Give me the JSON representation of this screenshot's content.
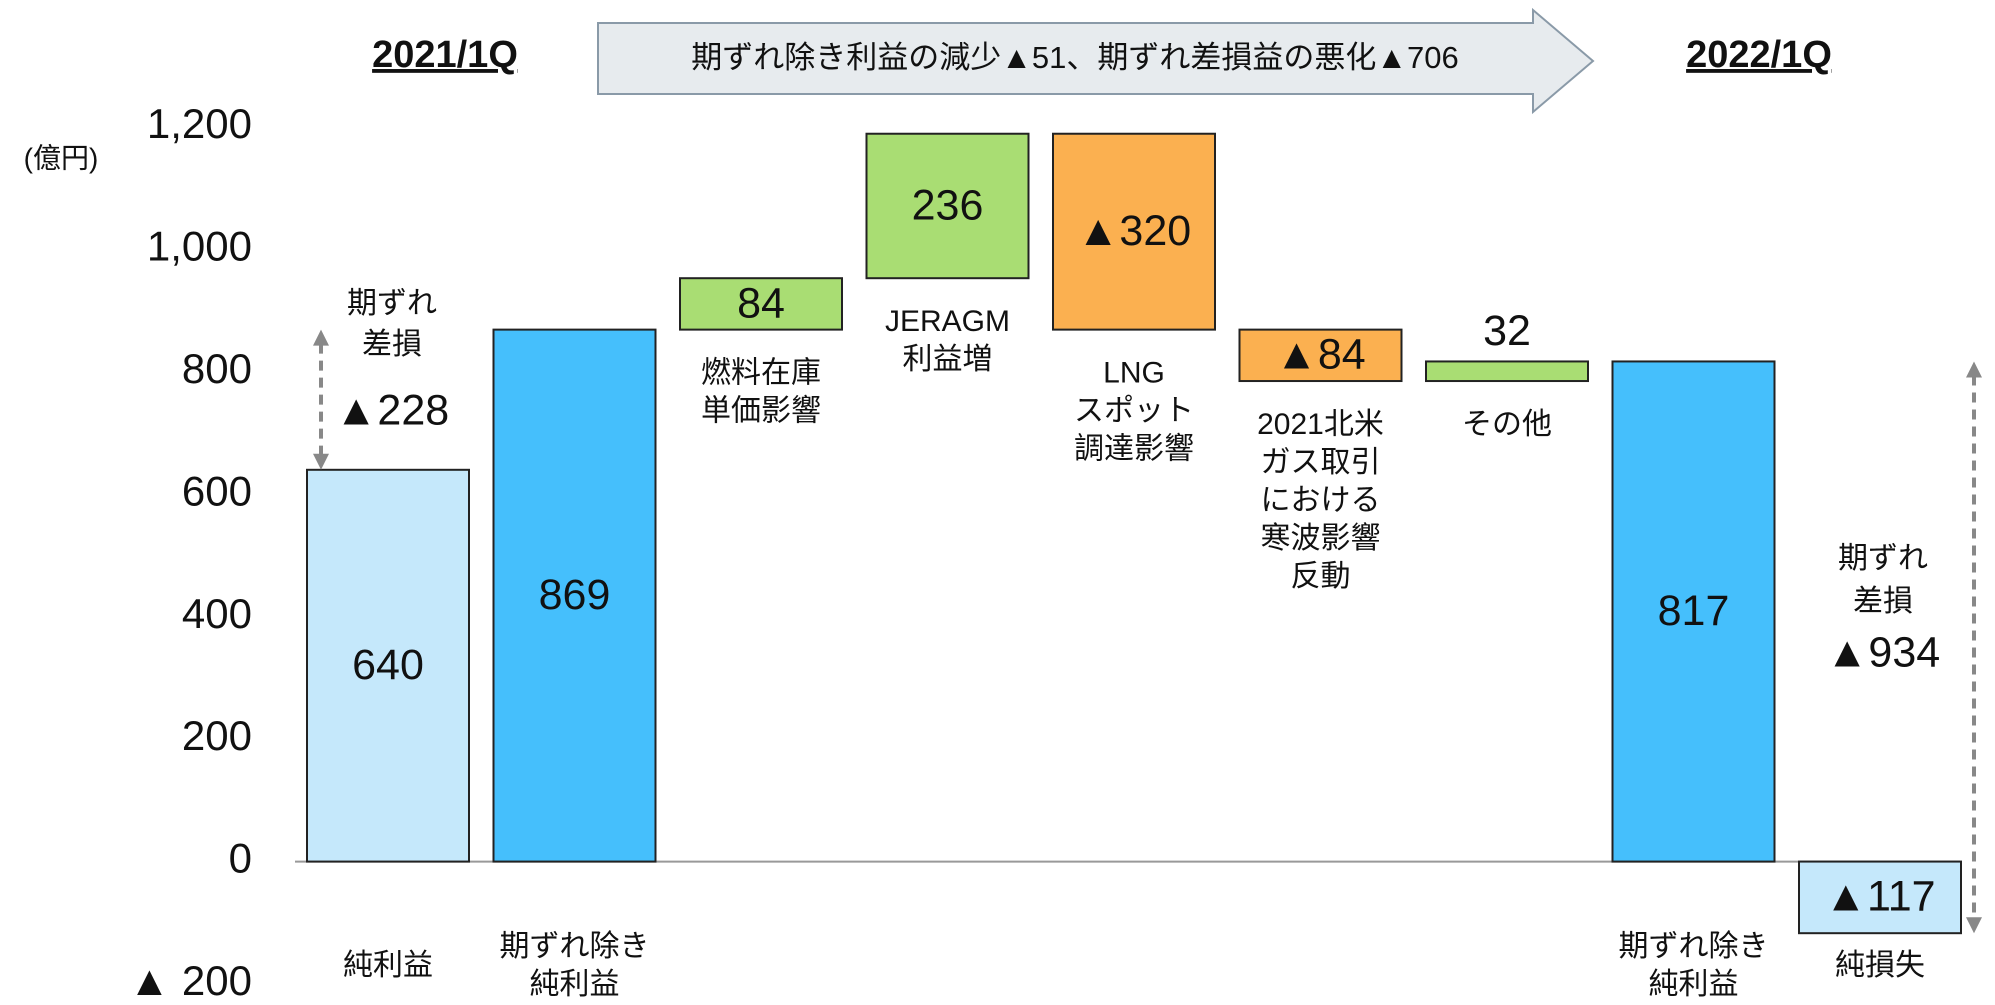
{
  "chart_data": {
    "type": "waterfall",
    "categories": [
      "純利益",
      "期ずれ除き\n純利益",
      "燃料在庫\n単価影響",
      "JERAGM\n利益増",
      "LNG\nスポット\n調達影響",
      "2021北米\nガス取引\nにおける\n寒波影響\n反動",
      "その他",
      "期ずれ除き\n純利益",
      "純損失"
    ],
    "values": [
      640,
      869,
      84,
      236,
      -320,
      -84,
      32,
      817,
      -117
    ],
    "value_labels": [
      "640",
      "869",
      "84",
      "236",
      "▲320",
      "▲84",
      "32",
      "817",
      "▲117"
    ],
    "kinds": [
      "total",
      "total",
      "delta",
      "delta",
      "delta",
      "delta",
      "delta",
      "total",
      "total"
    ],
    "colors": [
      "#c5e8fb",
      "#45bffc",
      "#a9dd73",
      "#a9dd73",
      "#fbb050",
      "#fbb050",
      "#a9dd73",
      "#45bffc",
      "#c5e8fb"
    ],
    "ylim": [
      -200,
      1200
    ],
    "yticks": [
      {
        "value": 1200,
        "label": "1,200"
      },
      {
        "value": 1000,
        "label": "1,000"
      },
      800,
      600,
      400,
      200,
      0,
      {
        "value": -200,
        "label": "▲ 200"
      }
    ],
    "unit": "(億円)",
    "left_header": "2021/1Q",
    "right_header": "2022/1Q",
    "banner": "期ずれ除き利益の減少▲51、期ずれ差損益の悪化▲706",
    "left_note": "期ずれ\n差損",
    "left_diff": "▲228",
    "right_note": "期ずれ\n差損",
    "right_diff": "▲934",
    "grid": false
  }
}
